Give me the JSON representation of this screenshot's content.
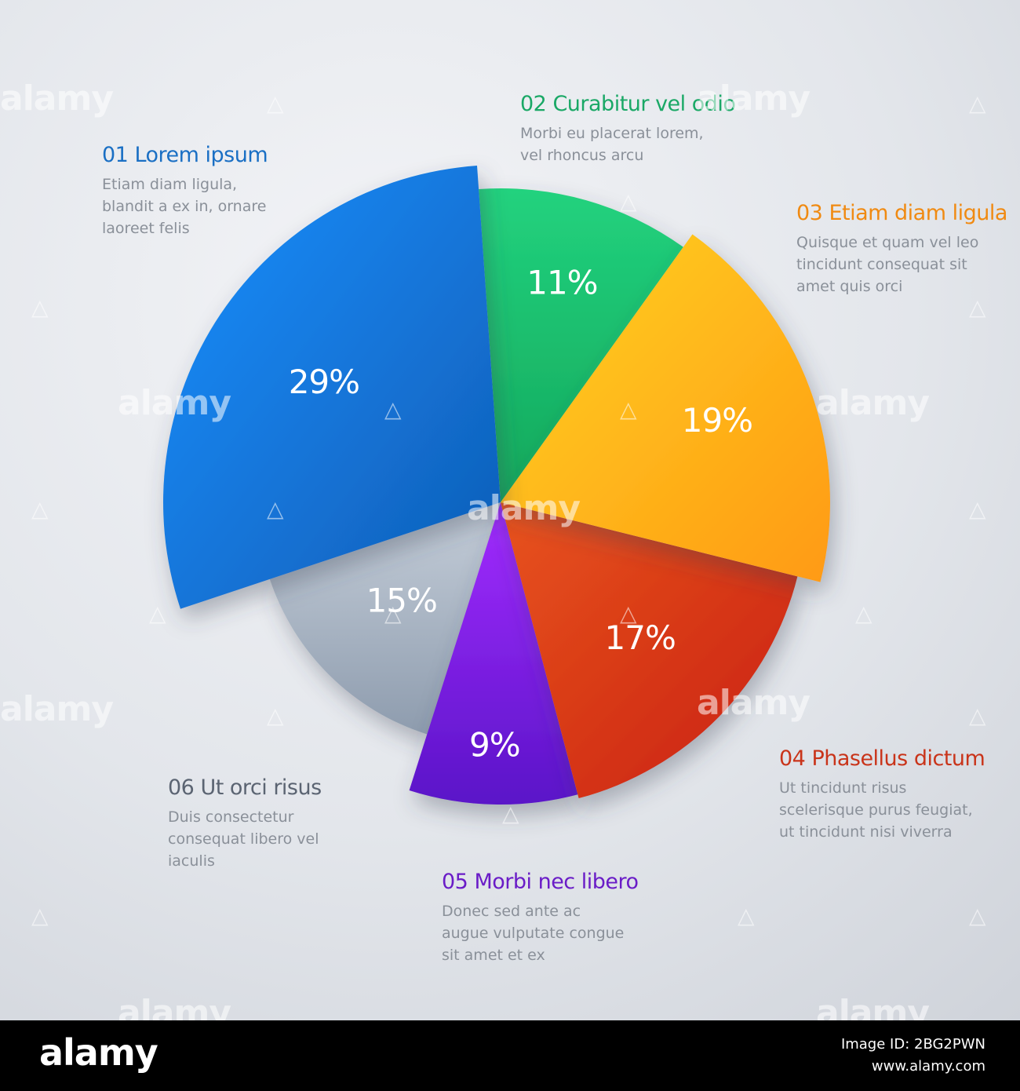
{
  "chart_data": {
    "type": "pie",
    "slices": [
      {
        "id": "01",
        "name": "Lorem ipsum",
        "value": 29,
        "label": "29%",
        "color": "#1a74d8",
        "description": "Etiam diam ligula, blandit a ex in, ornare laoreet felis",
        "title_color": "#1a6fc4"
      },
      {
        "id": "02",
        "name": "Curabitur vel odio",
        "value": 11,
        "label": "11%",
        "color": "#1fc673",
        "description": "Morbi eu placerat lorem, vel rhoncus arcu",
        "title_color": "#1aa866"
      },
      {
        "id": "03",
        "name": "Etiam diam ligula",
        "value": 19,
        "label": "19%",
        "color": "#fbb41a",
        "description": "Quisque et quam vel leo tincidunt consequat sit amet quis orci",
        "title_color": "#f08a12"
      },
      {
        "id": "04",
        "name": "Phasellus dictum",
        "value": 17,
        "label": "17%",
        "color": "#e0421a",
        "description": "Ut tincidunt risus scelerisque purus feugiat, ut tincidunt nisi viverra",
        "title_color": "#c9341a"
      },
      {
        "id": "05",
        "name": "Morbi nec libero",
        "value": 9,
        "label": "9%",
        "color": "#8b1fe6",
        "description": "Donec sed ante ac augue vulputate congue sit amet et ex",
        "title_color": "#6a1cc7"
      },
      {
        "id": "06",
        "name": "Ut orci risus",
        "value": 15,
        "label": "15%",
        "color": "#a9b6c6",
        "description": "Duis consectetur consequat libero vel iaculis",
        "title_color": "#5b6472"
      }
    ]
  },
  "labels": {
    "l01_title": "01 Lorem ipsum",
    "l01_desc": "Etiam diam ligula, blandit a ex in, ornare laoreet felis",
    "l02_title": "02 Curabitur vel odio",
    "l02_desc": "Morbi eu placerat lorem, vel rhoncus arcu",
    "l03_title": "03 Etiam diam ligula",
    "l03_desc": "Quisque et quam vel leo tincidunt consequat sit amet quis orci",
    "l04_title": "04 Phasellus dictum",
    "l04_desc": "Ut tincidunt risus scelerisque purus feugiat, ut tincidunt nisi viverra",
    "l05_title": "05 Morbi nec libero",
    "l05_desc": "Donec sed ante ac augue vulputate congue sit amet et ex",
    "l06_title": "06 Ut orci risus",
    "l06_desc": "Duis consectetur consequat libero vel iaculis"
  },
  "watermark": "alamy",
  "footer": {
    "logo": "alamy",
    "image_id": "Image ID: 2BG2PWN",
    "url": "www.alamy.com"
  }
}
